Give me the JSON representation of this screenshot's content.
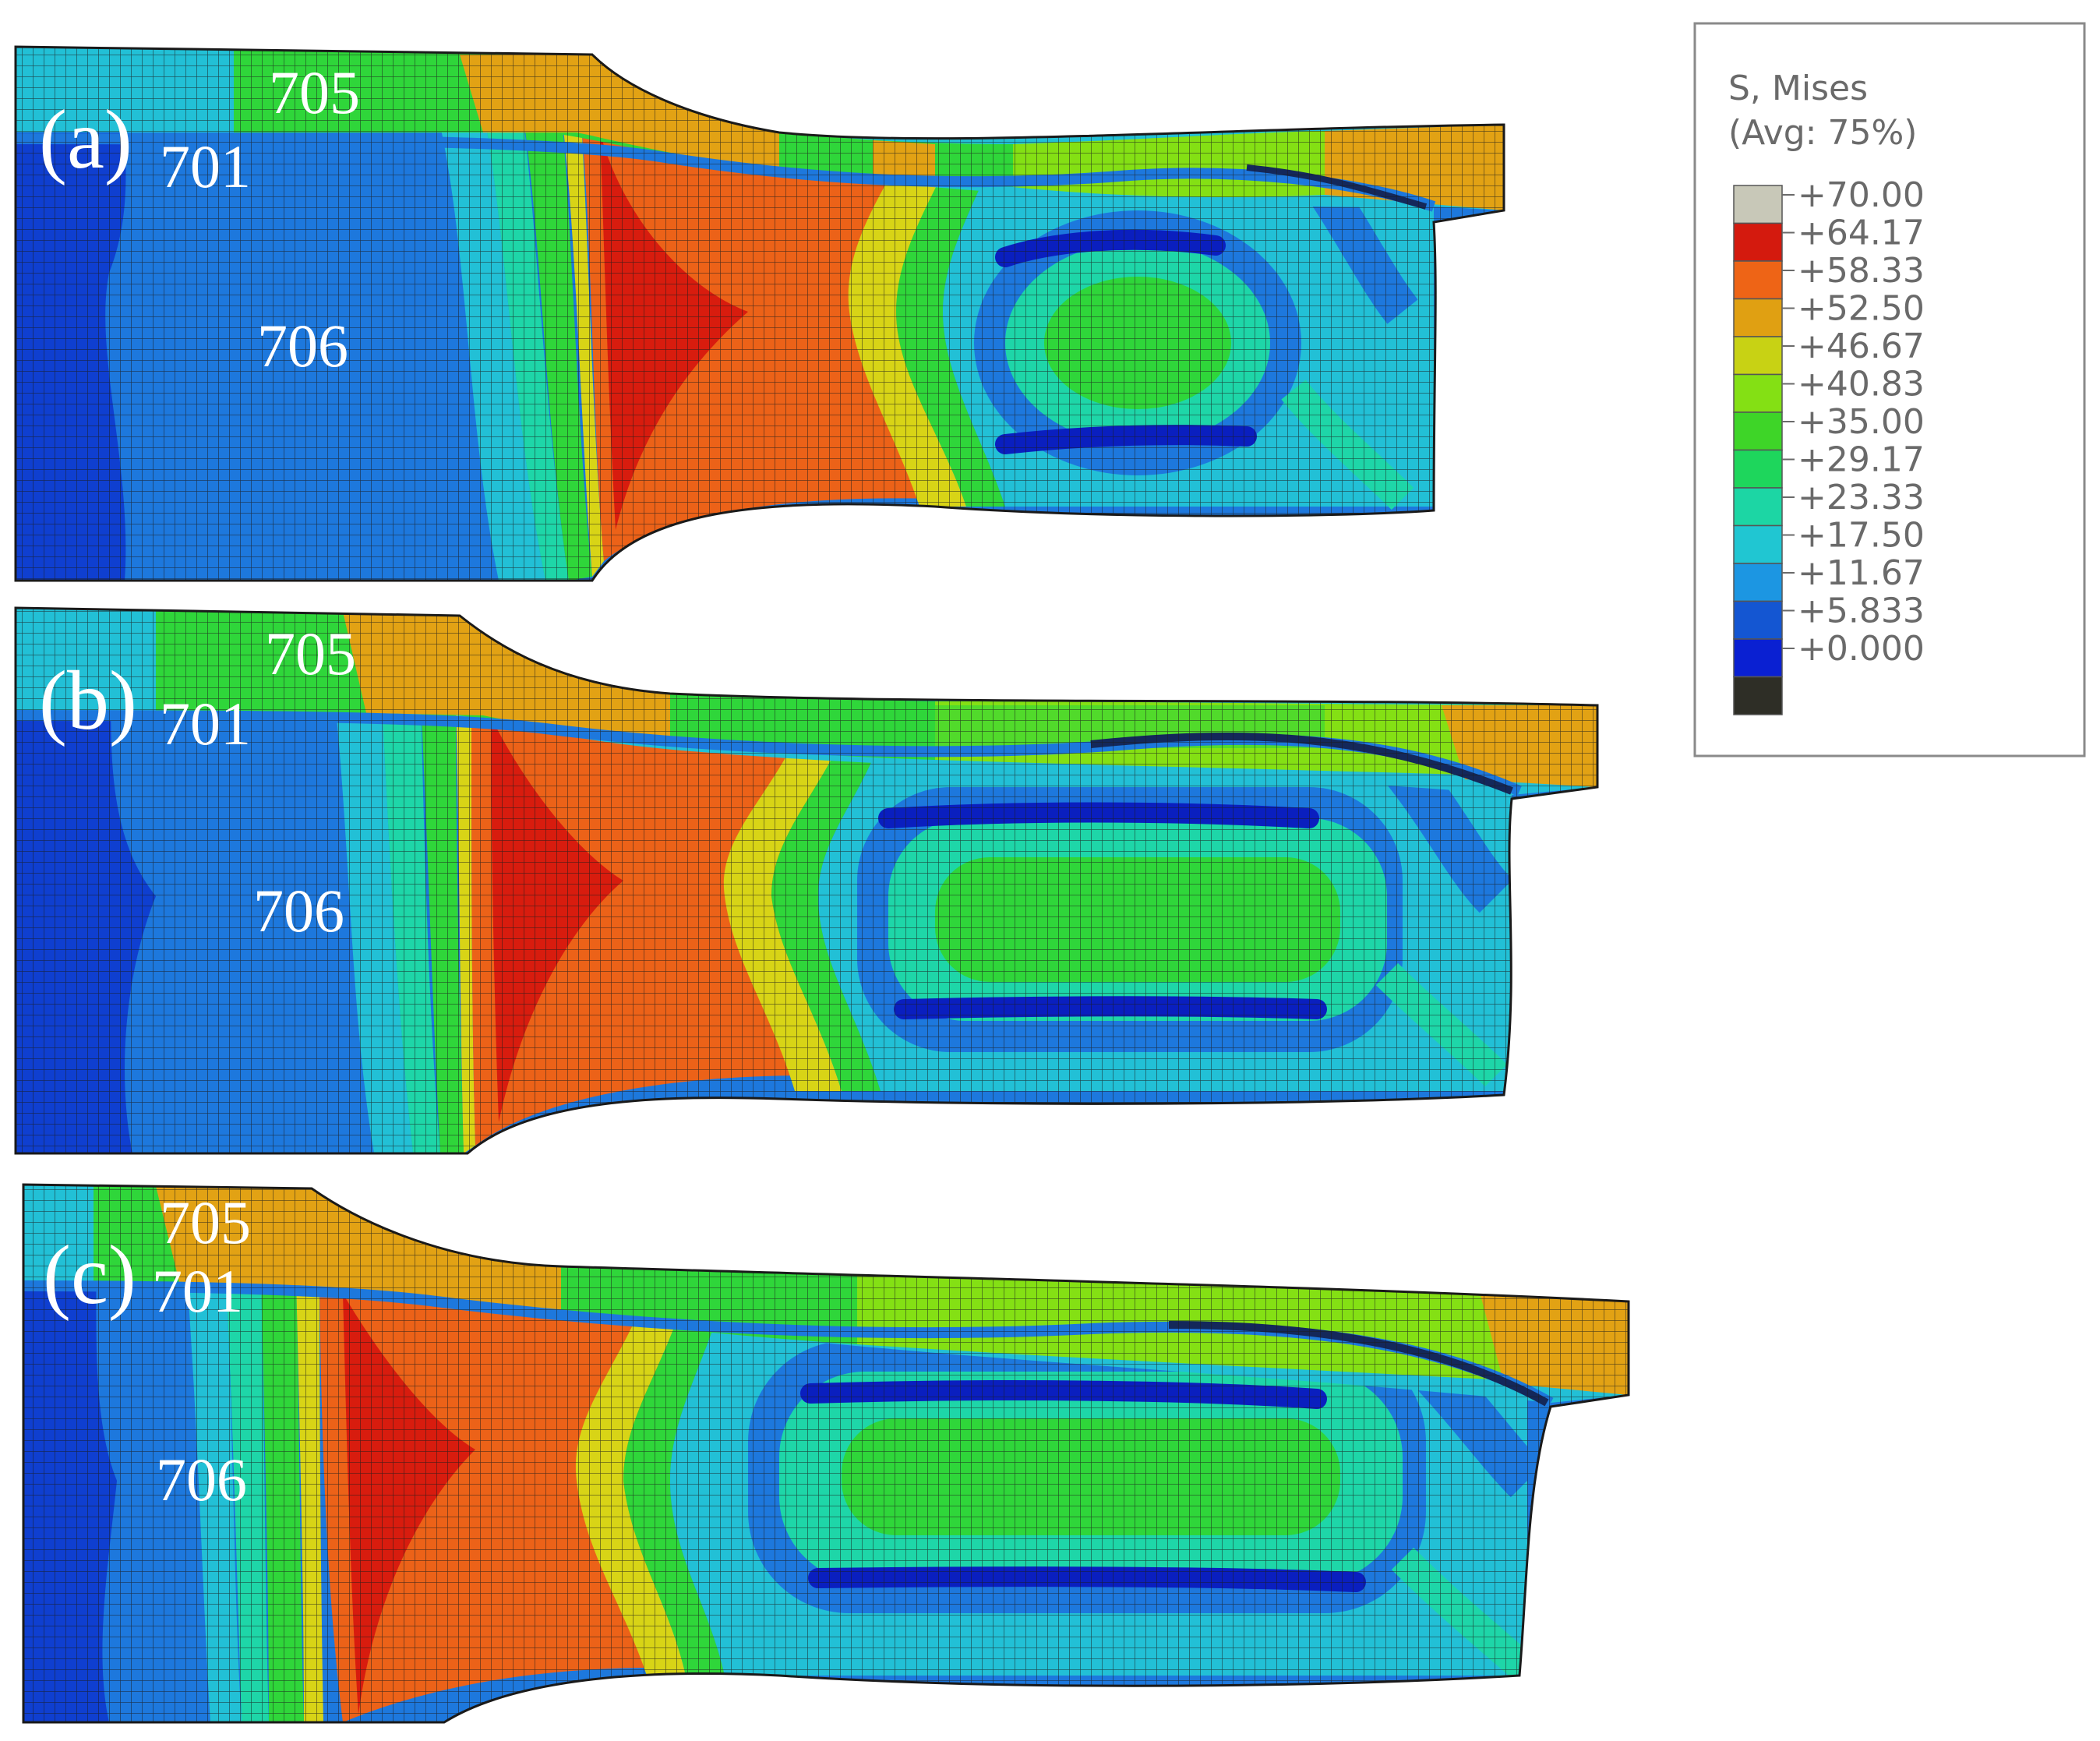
{
  "panels": [
    {
      "label": "(a)",
      "parts": {
        "top": "705",
        "mid": "701",
        "body": "706"
      }
    },
    {
      "label": "(b)",
      "parts": {
        "top": "705",
        "mid": "701",
        "body": "706"
      }
    },
    {
      "label": "(c)",
      "parts": {
        "top": "705",
        "mid": "701",
        "body": "706"
      }
    }
  ],
  "legend": {
    "title_line1": "S, Mises",
    "title_line2": "(Avg: 75%)",
    "entries": [
      {
        "value": "+70.00",
        "color": "#c8c8b8"
      },
      {
        "value": "+64.17",
        "color": "#d41a0e"
      },
      {
        "value": "+58.33",
        "color": "#ee6416"
      },
      {
        "value": "+52.50",
        "color": "#e0a012"
      },
      {
        "value": "+46.67",
        "color": "#c8d214"
      },
      {
        "value": "+40.83",
        "color": "#84e014"
      },
      {
        "value": "+35.00",
        "color": "#3ed528"
      },
      {
        "value": "+29.17",
        "color": "#1ed65c"
      },
      {
        "value": "+23.33",
        "color": "#1cd6a4"
      },
      {
        "value": "+17.50",
        "color": "#20c6d2"
      },
      {
        "value": "+11.67",
        "color": "#1c96e2"
      },
      {
        "value": "+5.833",
        "color": "#1456d2"
      },
      {
        "value": "+0.000",
        "color": "#0a20d2"
      }
    ],
    "below_min_color": "#2e2e26"
  },
  "contour_colors": {
    "blue": "#0f3fd0",
    "blue_dark": "#0a1fbf",
    "blue_mid": "#1d78dd",
    "cyan": "#22c0d6",
    "teal": "#1ed6a8",
    "green": "#2fd63a",
    "lime": "#8ee018",
    "yellow": "#d8d416",
    "orange_y": "#e2a214",
    "orange": "#ec6218",
    "red": "#d81c0e"
  }
}
